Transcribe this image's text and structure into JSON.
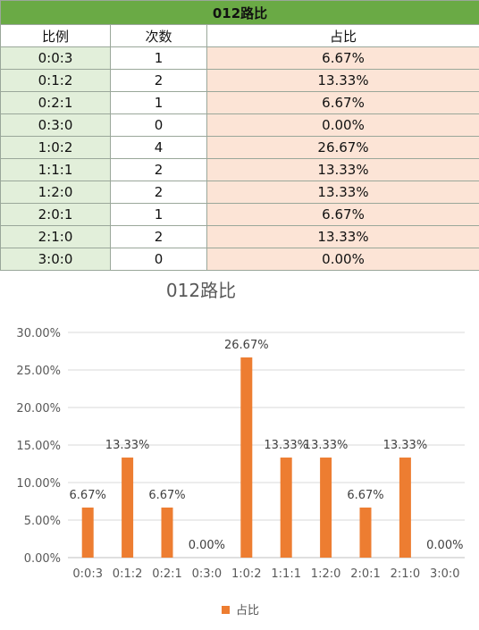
{
  "table": {
    "title": "012路比",
    "headers": [
      "比例",
      "次数",
      "占比"
    ],
    "rows": [
      [
        "0:0:3",
        "1",
        "6.67%"
      ],
      [
        "0:1:2",
        "2",
        "13.33%"
      ],
      [
        "0:2:1",
        "1",
        "6.67%"
      ],
      [
        "0:3:0",
        "0",
        "0.00%"
      ],
      [
        "1:0:2",
        "4",
        "26.67%"
      ],
      [
        "1:1:1",
        "2",
        "13.33%"
      ],
      [
        "1:2:0",
        "2",
        "13.33%"
      ],
      [
        "2:0:1",
        "1",
        "6.67%"
      ],
      [
        "2:1:0",
        "2",
        "13.33%"
      ],
      [
        "3:0:0",
        "0",
        "0.00%"
      ]
    ]
  },
  "colors": {
    "bar": "#ed7d31",
    "header": "#6aaa45",
    "ratio_cell": "#e2efda",
    "pct_cell": "#fce4d6"
  },
  "chart_data": {
    "type": "bar",
    "title": "012路比",
    "categories": [
      "0:0:3",
      "0:1:2",
      "0:2:1",
      "0:3:0",
      "1:0:2",
      "1:1:1",
      "1:2:0",
      "2:0:1",
      "2:1:0",
      "3:0:0"
    ],
    "series": [
      {
        "name": "占比",
        "values": [
          6.67,
          13.33,
          6.67,
          0.0,
          26.67,
          13.33,
          13.33,
          6.67,
          13.33,
          0.0
        ]
      }
    ],
    "data_labels": [
      "6.67%",
      "13.33%",
      "6.67%",
      "0.00%",
      "26.67%",
      "13.33%",
      "13.33%",
      "6.67%",
      "13.33%",
      "0.00%"
    ],
    "yticks": [
      "0.00%",
      "5.00%",
      "10.00%",
      "15.00%",
      "20.00%",
      "25.00%",
      "30.00%"
    ],
    "ylim": [
      0,
      30
    ],
    "grid": true,
    "legend": "bottom"
  }
}
